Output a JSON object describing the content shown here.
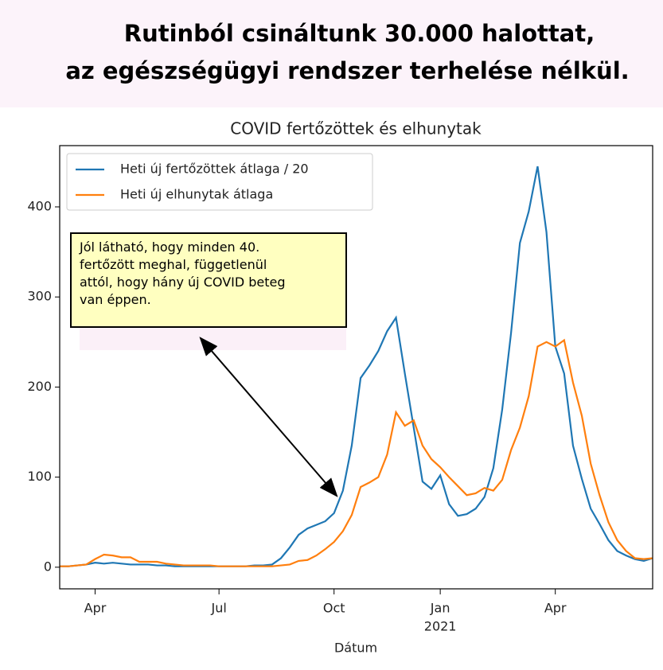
{
  "header": {
    "title_lines": [
      "Rutinból csináltunk 30.000 halottat,",
      "az egészségügyi rendszer terhelése nélkül."
    ]
  },
  "chart_data": {
    "type": "line",
    "title": "COVID fertőzöttek és elhunytak",
    "x_label": "Dátum",
    "categories": [
      null,
      null,
      null,
      null,
      "Apr",
      null,
      null,
      null,
      null,
      null,
      null,
      null,
      null,
      null,
      null,
      null,
      null,
      null,
      "Jul",
      null,
      null,
      null,
      null,
      null,
      null,
      null,
      null,
      null,
      null,
      null,
      null,
      "Oct",
      null,
      null,
      null,
      null,
      null,
      null,
      null,
      null,
      null,
      null,
      null,
      "Jan",
      null,
      null,
      null,
      null,
      null,
      null,
      null,
      null,
      null,
      null,
      null,
      null,
      "Apr",
      null,
      null,
      null,
      null,
      null,
      null,
      null,
      null,
      null,
      null,
      null
    ],
    "year_label": "2021",
    "series": [
      {
        "name": "Heti új fertőzöttek átlaga / 20",
        "color": "#1f77b4",
        "values": [
          1,
          1,
          2,
          3,
          5,
          4,
          5,
          4,
          3,
          3,
          3,
          2,
          2,
          1,
          1,
          1,
          1,
          1,
          1,
          1,
          1,
          1,
          2,
          2,
          3,
          10,
          22,
          36,
          43,
          47,
          51,
          60,
          85,
          135,
          210,
          224,
          240,
          262,
          277,
          215,
          155,
          95,
          87,
          102,
          70,
          57,
          59,
          65,
          78,
          110,
          175,
          260,
          360,
          395,
          445,
          372,
          245,
          215,
          135,
          98,
          65,
          48,
          30,
          18,
          13,
          9,
          7,
          10
        ]
      },
      {
        "name": "Heti új elhunytak átlaga",
        "color": "#ff7f0e",
        "values": [
          1,
          1,
          2,
          3,
          9,
          14,
          13,
          11,
          11,
          6,
          6,
          6,
          4,
          3,
          2,
          2,
          2,
          2,
          1,
          1,
          1,
          1,
          1,
          1,
          1,
          2,
          3,
          7,
          8,
          13,
          20,
          28,
          40,
          58,
          89,
          94,
          100,
          125,
          172,
          157,
          163,
          135,
          120,
          111,
          100,
          90,
          80,
          82,
          88,
          85,
          97,
          130,
          155,
          190,
          245,
          250,
          245,
          252,
          205,
          168,
          115,
          80,
          50,
          30,
          18,
          10,
          9,
          10
        ]
      }
    ],
    "ylim": [
      -24,
      468
    ],
    "yticks": [
      0,
      100,
      200,
      300,
      400
    ],
    "legend": "upper left",
    "annotation_lines": [
      "Jól látható, hogy minden 40.",
      "fertőzött meghal, függetlenül",
      "attól, hogy hány új COVID beteg",
      "van éppen."
    ]
  }
}
